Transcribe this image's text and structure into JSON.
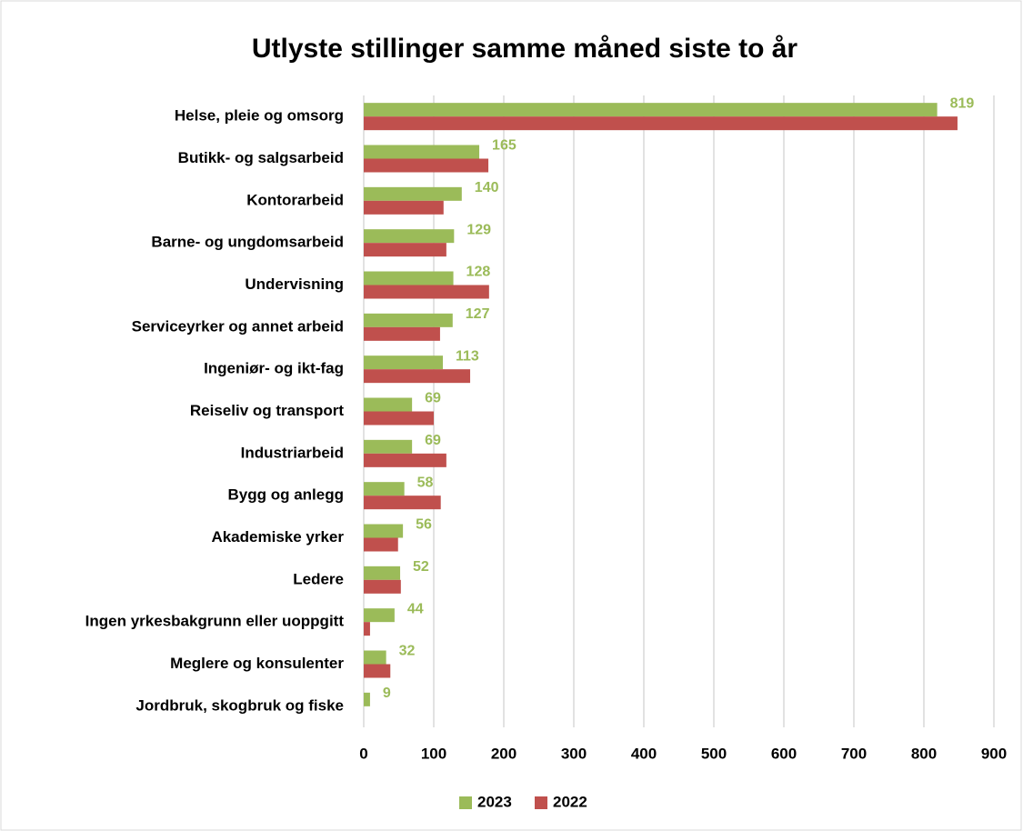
{
  "chart_data": {
    "type": "hbar",
    "title": "Utlyste stillinger samme måned siste to år",
    "categories": [
      "Helse, pleie og omsorg",
      "Butikk- og salgsarbeid",
      "Kontorarbeid",
      "Barne- og ungdomsarbeid",
      "Undervisning",
      "Serviceyrker og annet arbeid",
      "Ingeniør- og ikt-fag",
      "Reiseliv og transport",
      "Industriarbeid",
      "Bygg og anlegg",
      "Akademiske yrker",
      "Ledere",
      "Ingen yrkesbakgrunn eller uoppgitt",
      "Meglere og konsulenter",
      "Jordbruk, skogbruk og fiske"
    ],
    "series": [
      {
        "name": "2023",
        "color": "#9bbb59",
        "values": [
          819,
          165,
          140,
          129,
          128,
          127,
          113,
          69,
          69,
          58,
          56,
          52,
          44,
          32,
          9
        ]
      },
      {
        "name": "2022",
        "color": "#c0504d",
        "values": [
          848,
          178,
          114,
          118,
          179,
          109,
          152,
          100,
          118,
          110,
          49,
          53,
          9,
          38,
          0
        ]
      }
    ],
    "xlim": [
      0,
      900
    ],
    "xticks": [
      0,
      100,
      200,
      300,
      400,
      500,
      600,
      700,
      800,
      900
    ],
    "grid": true,
    "legend": "bottom"
  }
}
